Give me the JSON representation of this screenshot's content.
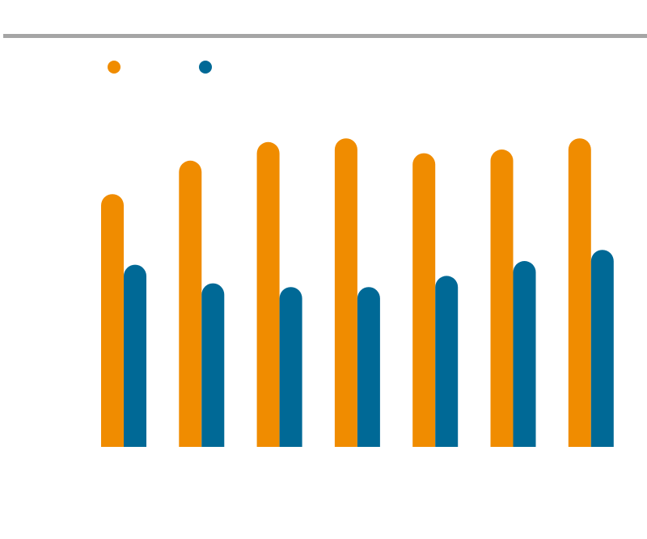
{
  "chart_data": {
    "type": "bar",
    "title": "",
    "xlabel": "",
    "ylabel": "",
    "categories": [
      "",
      "",
      "",
      "",
      "",
      "",
      ""
    ],
    "series": [
      {
        "color": "#f08c00",
        "values": [
          68,
          77,
          82,
          83,
          79,
          80,
          83
        ]
      },
      {
        "color": "#006996",
        "values": [
          49,
          44,
          43,
          43,
          46,
          50,
          53
        ]
      }
    ],
    "ylim": [
      0,
      100
    ],
    "grid": false,
    "legend": "top-left",
    "top_rule_color": "#a5a5a5"
  }
}
